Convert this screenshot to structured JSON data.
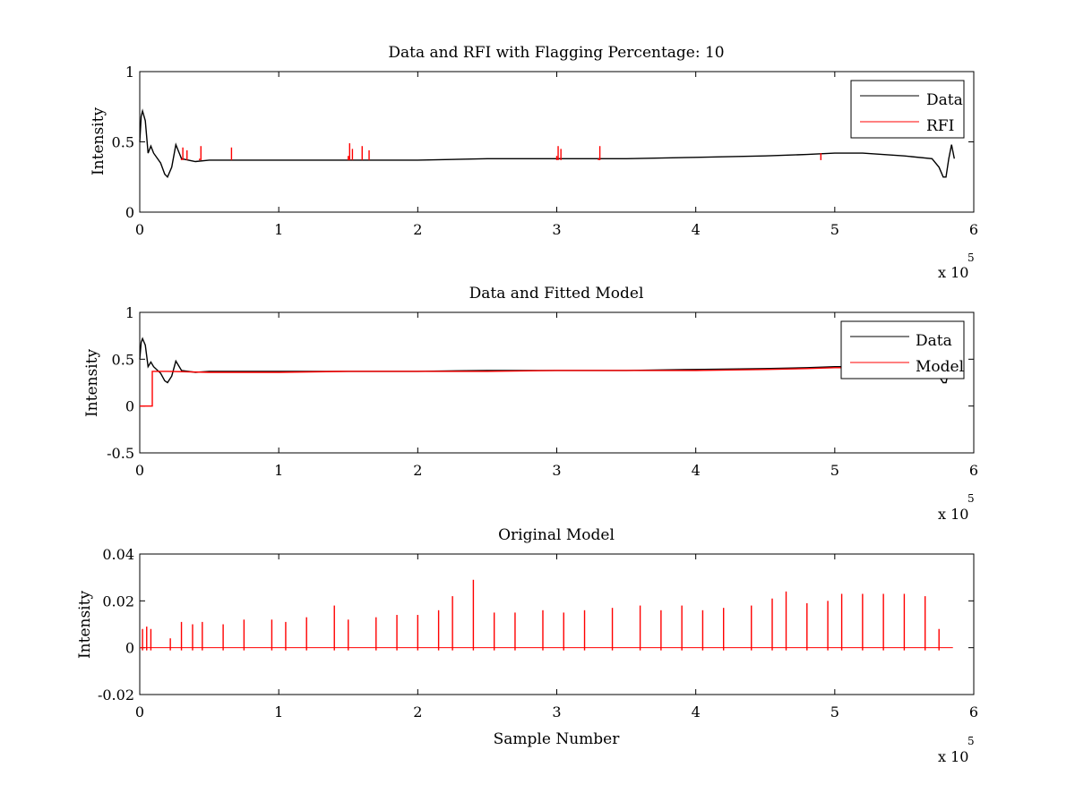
{
  "chart_data": [
    {
      "type": "line",
      "title": "Data and RFI with Flagging Percentage: 10",
      "xlabel": "",
      "ylabel": "Intensity",
      "xlim": [
        0,
        600000
      ],
      "ylim": [
        0,
        1
      ],
      "x_ticks": [
        "0",
        "1",
        "2",
        "3",
        "4",
        "5",
        "6"
      ],
      "y_ticks": [
        "0",
        "0.5",
        "1"
      ],
      "x_exponent": "x 10",
      "x_exponent_power": "5",
      "legend": "top-right",
      "series": [
        {
          "name": "Data",
          "color": "#000000",
          "x": [
            0,
            1000,
            2000,
            4000,
            6000,
            8000,
            10000,
            15000,
            18000,
            20000,
            23000,
            26000,
            30000,
            35000,
            40000,
            50000,
            60000,
            80000,
            100000,
            150000,
            200000,
            250000,
            300000,
            350000,
            400000,
            450000,
            480000,
            500000,
            520000,
            550000,
            570000,
            575000,
            578000,
            580000,
            582000,
            584000,
            586000
          ],
          "values": [
            0.5,
            0.68,
            0.72,
            0.65,
            0.42,
            0.47,
            0.42,
            0.35,
            0.27,
            0.25,
            0.32,
            0.48,
            0.38,
            0.37,
            0.36,
            0.37,
            0.37,
            0.37,
            0.37,
            0.37,
            0.37,
            0.38,
            0.38,
            0.38,
            0.39,
            0.4,
            0.41,
            0.42,
            0.42,
            0.4,
            0.38,
            0.32,
            0.25,
            0.25,
            0.38,
            0.48,
            0.38
          ]
        },
        {
          "name": "RFI",
          "color": "#ff0000",
          "x": [
            30000,
            31000,
            34000,
            43000,
            44000,
            65000,
            66000,
            150000,
            151000,
            153000,
            160000,
            165000,
            300000,
            301000,
            303000,
            330000,
            331000,
            490000,
            491000
          ],
          "values": [
            0.38,
            0.46,
            0.44,
            0.38,
            0.47,
            0.37,
            0.46,
            0.4,
            0.49,
            0.45,
            0.47,
            0.44,
            0.4,
            0.47,
            0.45,
            0.38,
            0.47,
            0.42,
            0.49
          ]
        }
      ]
    },
    {
      "type": "line",
      "title": "Data and Fitted Model",
      "xlabel": "",
      "ylabel": "Intensity",
      "xlim": [
        0,
        600000
      ],
      "ylim": [
        -0.5,
        1
      ],
      "x_ticks": [
        "0",
        "1",
        "2",
        "3",
        "4",
        "5",
        "6"
      ],
      "y_ticks": [
        "-0.5",
        "0",
        "0.5",
        "1"
      ],
      "x_exponent": "x 10",
      "x_exponent_power": "5",
      "legend": "top-right",
      "series": [
        {
          "name": "Data",
          "color": "#000000",
          "x": [
            0,
            1000,
            2000,
            4000,
            6000,
            8000,
            10000,
            15000,
            18000,
            20000,
            23000,
            26000,
            30000,
            35000,
            40000,
            50000,
            60000,
            80000,
            100000,
            150000,
            200000,
            250000,
            300000,
            350000,
            400000,
            450000,
            480000,
            500000,
            520000,
            550000,
            570000,
            575000,
            578000,
            580000,
            582000,
            584000,
            586000
          ],
          "values": [
            0.5,
            0.68,
            0.72,
            0.65,
            0.42,
            0.47,
            0.42,
            0.35,
            0.27,
            0.25,
            0.32,
            0.48,
            0.38,
            0.37,
            0.36,
            0.37,
            0.37,
            0.37,
            0.37,
            0.37,
            0.37,
            0.38,
            0.38,
            0.38,
            0.39,
            0.4,
            0.41,
            0.42,
            0.42,
            0.4,
            0.38,
            0.32,
            0.25,
            0.25,
            0.38,
            0.48,
            0.38
          ]
        },
        {
          "name": "Model",
          "color": "#ff0000",
          "x": [
            0,
            9000,
            9000,
            20000,
            50000,
            100000,
            150000,
            200000,
            250000,
            300000,
            350000,
            400000,
            450000,
            480000,
            500000,
            540000
          ],
          "values": [
            0.0,
            0.0,
            0.37,
            0.37,
            0.36,
            0.36,
            0.37,
            0.37,
            0.37,
            0.38,
            0.38,
            0.38,
            0.39,
            0.4,
            0.41,
            0.41
          ]
        }
      ]
    },
    {
      "type": "line",
      "title": "Original Model",
      "xlabel": "Sample Number",
      "ylabel": "Intensity",
      "xlim": [
        0,
        600000
      ],
      "ylim": [
        -0.02,
        0.04
      ],
      "x_ticks": [
        "0",
        "1",
        "2",
        "3",
        "4",
        "5",
        "6"
      ],
      "y_ticks": [
        "-0.02",
        "0",
        "0.02",
        "0.04"
      ],
      "x_exponent": "x 10",
      "x_exponent_power": "5",
      "legend": "none",
      "series": [
        {
          "color": "#ff0000",
          "x": [
            2000,
            5000,
            8000,
            22000,
            30000,
            38000,
            45000,
            60000,
            75000,
            95000,
            105000,
            120000,
            140000,
            150000,
            170000,
            185000,
            200000,
            215000,
            225000,
            240000,
            255000,
            270000,
            290000,
            305000,
            320000,
            340000,
            360000,
            375000,
            390000,
            405000,
            420000,
            440000,
            455000,
            465000,
            480000,
            495000,
            505000,
            520000,
            535000,
            550000,
            565000,
            575000
          ],
          "values": [
            0.008,
            0.009,
            0.008,
            0.004,
            0.011,
            0.01,
            0.011,
            0.01,
            0.012,
            0.012,
            0.011,
            0.013,
            0.018,
            0.012,
            0.013,
            0.014,
            0.014,
            0.016,
            0.022,
            0.029,
            0.015,
            0.015,
            0.016,
            0.015,
            0.016,
            0.017,
            0.018,
            0.016,
            0.018,
            0.016,
            0.017,
            0.018,
            0.021,
            0.024,
            0.019,
            0.02,
            0.023,
            0.023,
            0.023,
            0.023,
            0.022,
            0.008
          ]
        }
      ]
    }
  ]
}
